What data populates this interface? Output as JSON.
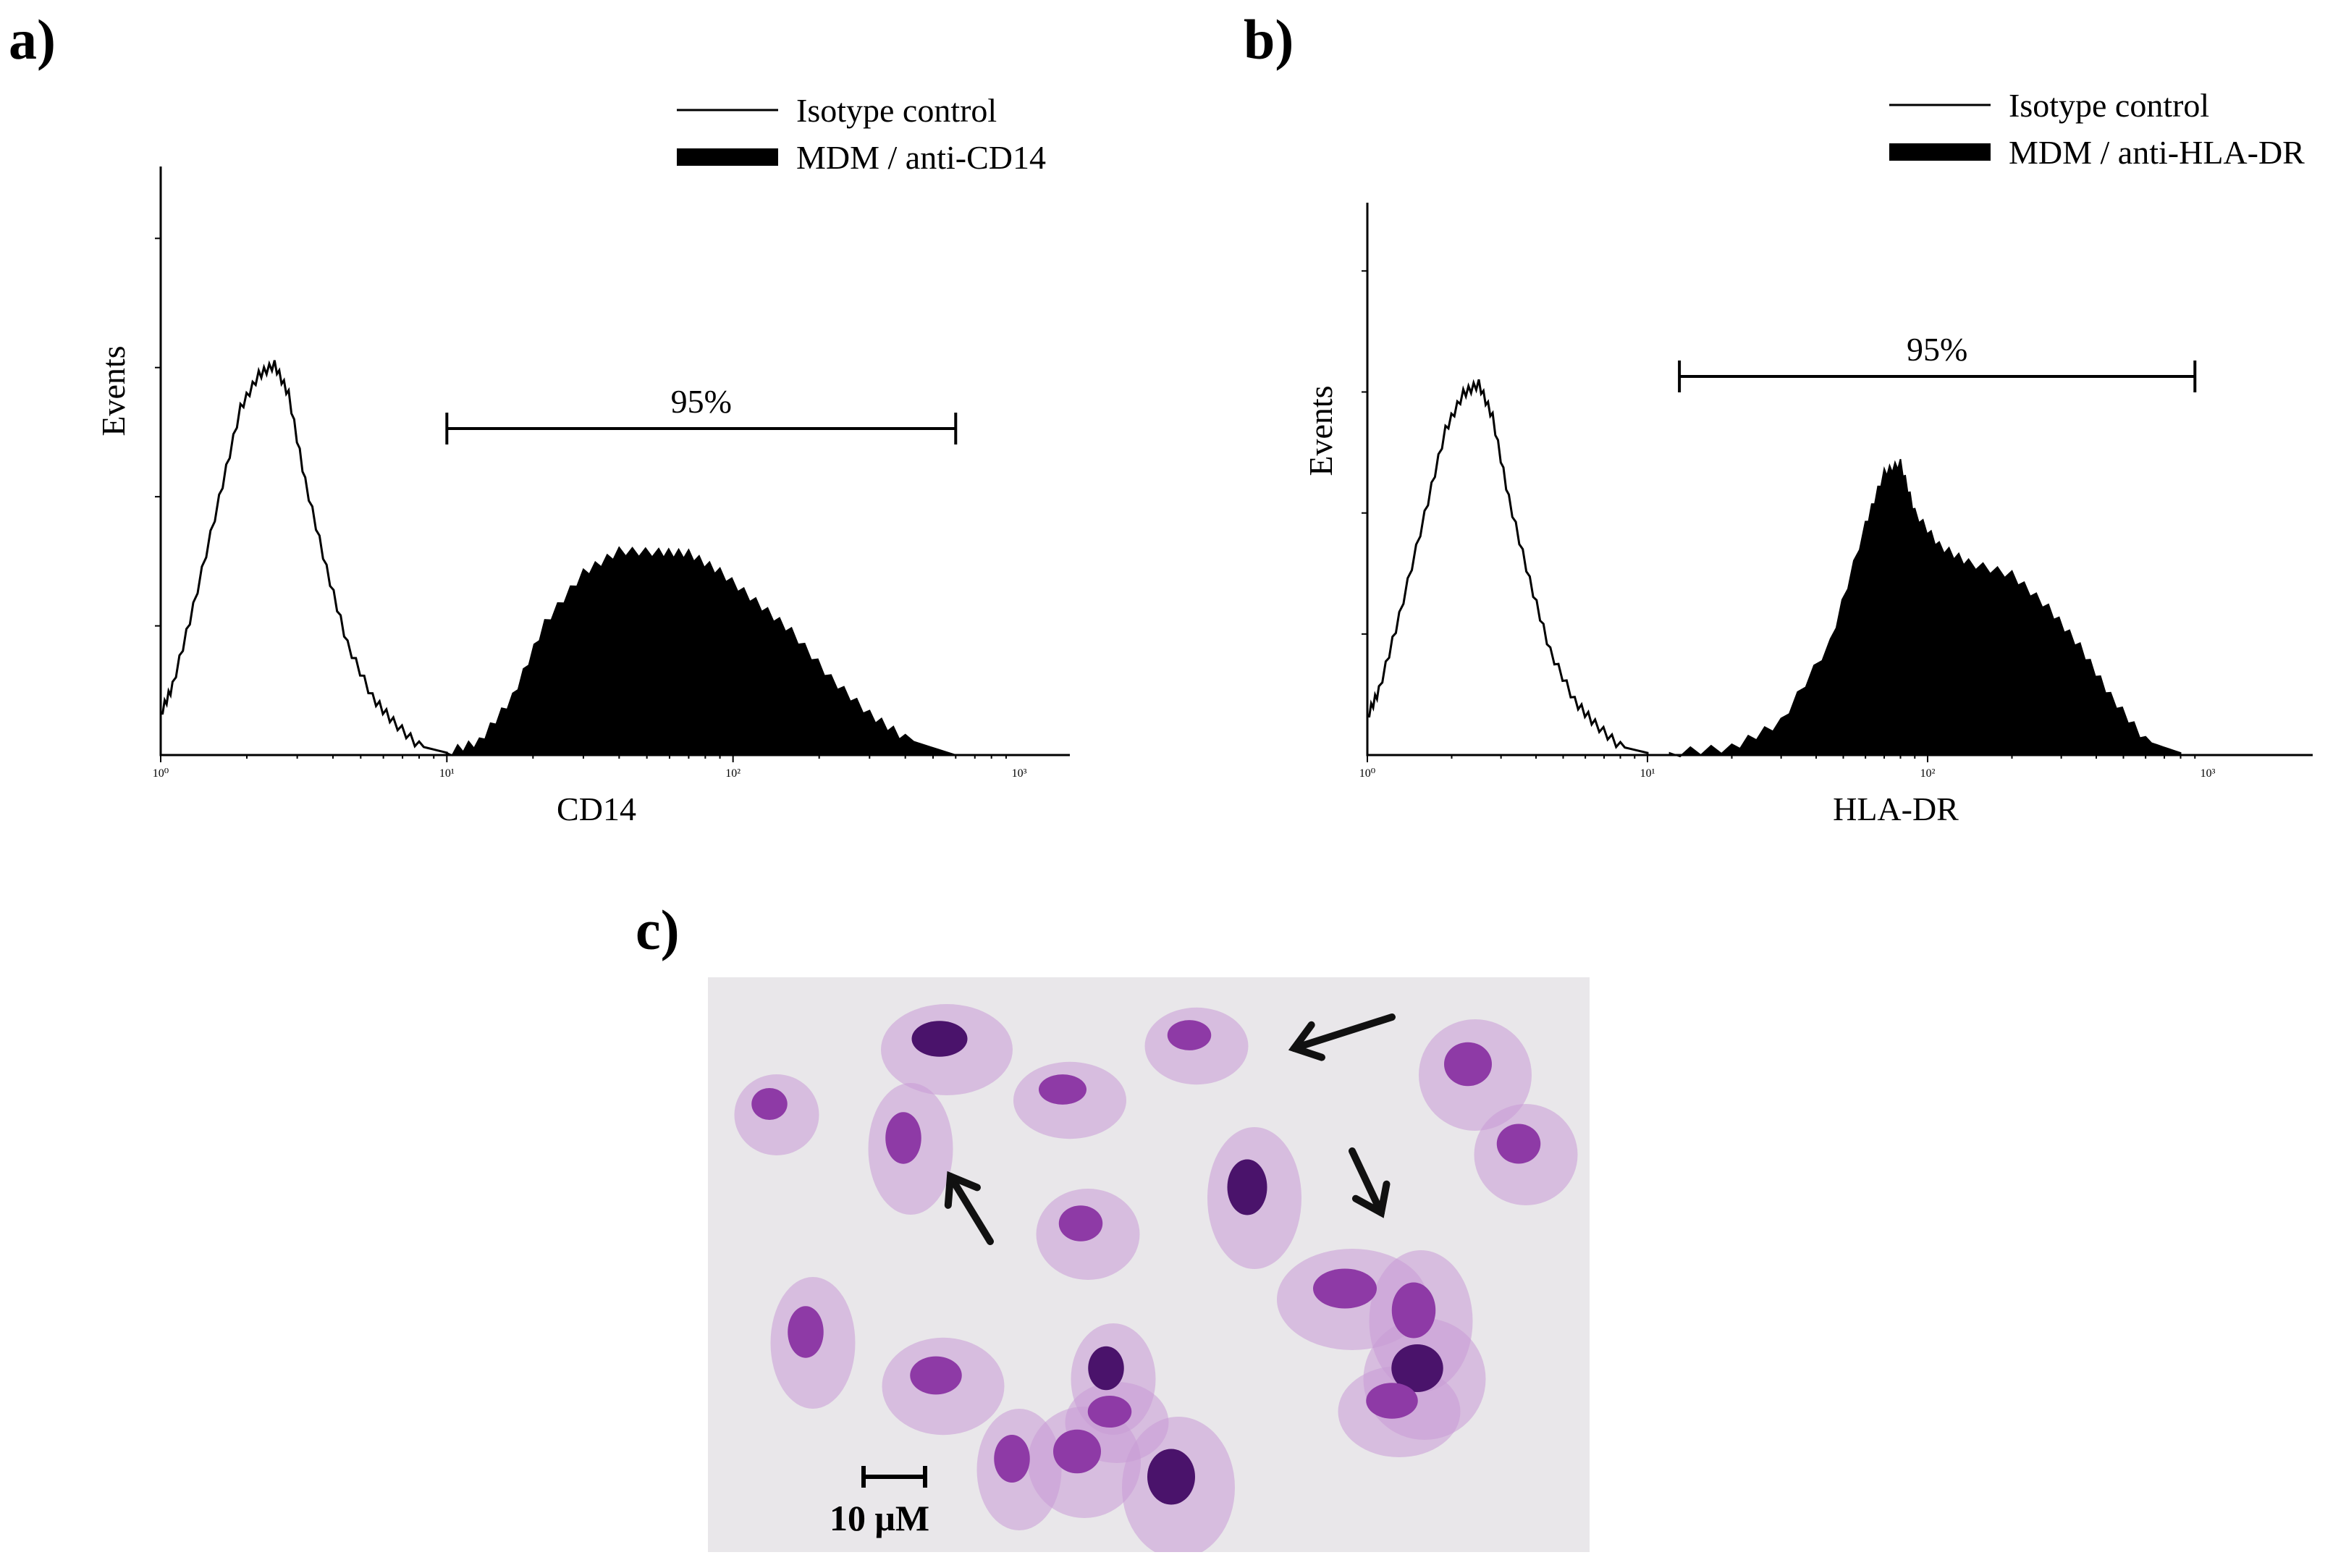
{
  "panels": {
    "a": {
      "label": "a)"
    },
    "b": {
      "label": "b)"
    },
    "c": {
      "label": "c)"
    }
  },
  "chart_data": [
    {
      "type": "area",
      "panel": "a)",
      "xlabel": "CD14",
      "ylabel": "Events",
      "x_scale": "log",
      "xlim": [
        1,
        1000
      ],
      "x_ticks": [
        "10⁰",
        "10¹",
        "10²",
        "10³"
      ],
      "legend": {
        "placement": "top-right",
        "entries": [
          "Isotype control",
          "MDM / anti-CD14"
        ]
      },
      "gate": {
        "label": "95%",
        "from": 10,
        "to": 600
      },
      "series": [
        {
          "name": "Isotype control",
          "style": "outline",
          "x": [
            1.0,
            1.1,
            1.3,
            1.6,
            1.9,
            2.2,
            2.5,
            2.8,
            3.2,
            3.8,
            4.5,
            5.5,
            6.5,
            8,
            10
          ],
          "y": [
            0.08,
            0.12,
            0.25,
            0.45,
            0.6,
            0.67,
            0.68,
            0.62,
            0.48,
            0.32,
            0.2,
            0.1,
            0.05,
            0.02,
            0.0
          ]
        },
        {
          "name": "MDM / anti-CD14",
          "style": "filled",
          "x": [
            10,
            13,
            17,
            22,
            30,
            40,
            55,
            70,
            90,
            120,
            160,
            220,
            300,
            400,
            600
          ],
          "y": [
            0.0,
            0.03,
            0.1,
            0.22,
            0.32,
            0.35,
            0.36,
            0.35,
            0.31,
            0.27,
            0.21,
            0.14,
            0.07,
            0.02,
            0.0
          ]
        }
      ]
    },
    {
      "type": "area",
      "panel": "b)",
      "xlabel": "HLA-DR",
      "ylabel": "Events",
      "x_scale": "log",
      "xlim": [
        1,
        1000
      ],
      "x_ticks": [
        "10⁰",
        "10¹",
        "10²",
        "10³"
      ],
      "legend": {
        "placement": "top-right",
        "entries": [
          "Isotype control",
          "MDM / anti-HLA-DR"
        ]
      },
      "gate": {
        "label": "95%",
        "from": 13,
        "to": 900
      },
      "series": [
        {
          "name": "Isotype control",
          "style": "outline",
          "x": [
            1.0,
            1.1,
            1.3,
            1.6,
            1.9,
            2.2,
            2.5,
            2.8,
            3.2,
            3.8,
            4.5,
            5.5,
            6.5,
            8,
            10
          ],
          "y": [
            0.08,
            0.12,
            0.25,
            0.45,
            0.6,
            0.68,
            0.69,
            0.62,
            0.48,
            0.32,
            0.2,
            0.1,
            0.05,
            0.02,
            0.0
          ]
        },
        {
          "name": "MDM / anti-HLA-DR",
          "style": "filled",
          "x": [
            12,
            20,
            30,
            45,
            60,
            70,
            80,
            90,
            110,
            140,
            200,
            270,
            350,
            450,
            600,
            800
          ],
          "y": [
            0.0,
            0.02,
            0.06,
            0.2,
            0.43,
            0.52,
            0.55,
            0.45,
            0.38,
            0.36,
            0.33,
            0.28,
            0.2,
            0.1,
            0.03,
            0.0
          ]
        }
      ]
    }
  ],
  "micrograph": {
    "scale_bar_label": "10 μM",
    "arrows": 3,
    "colors": {
      "background": "#e9e7ea",
      "cytoplasm": "#c99bd6",
      "nucleus": "#8e3aa6",
      "nucleus_dark": "#4a136b"
    }
  }
}
